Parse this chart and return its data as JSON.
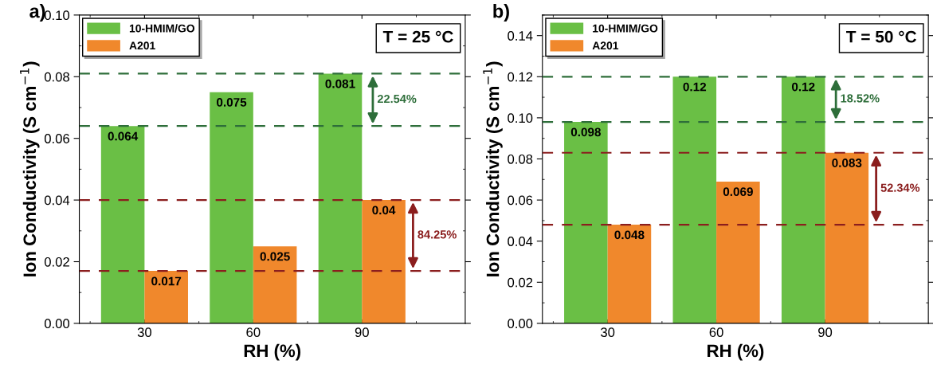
{
  "chart_data": [
    {
      "type": "bar",
      "title": "a)",
      "xlabel": "RH (%)",
      "ylabel": "Ion Conductivity (S cm$^{−1}$)",
      "categories": [
        "30",
        "60",
        "90"
      ],
      "series": [
        {
          "name": "10-HMIM/GO",
          "color": "#6abf45",
          "values": [
            0.064,
            0.075,
            0.081
          ]
        },
        {
          "name": "A201",
          "color": "#f0882c",
          "values": [
            0.017,
            0.025,
            0.04
          ]
        }
      ],
      "ylim": [
        0,
        0.1
      ],
      "yticks": [
        {
          "value": 0,
          "label": "0.00"
        },
        {
          "value": 0.02,
          "label": "0.02"
        },
        {
          "value": 0.04,
          "label": "0.04"
        },
        {
          "value": 0.06,
          "label": "0.06"
        },
        {
          "value": 0.08,
          "label": "0.08"
        },
        {
          "value": 0.1,
          "label": "0.10"
        }
      ],
      "data_labels": true,
      "grid": false,
      "legend": "top left",
      "ref_lines": [
        {
          "axis": "y",
          "value": 0.081,
          "color": "#2e6e3a",
          "line_style": "dashed"
        },
        {
          "axis": "y",
          "value": 0.064,
          "color": "#2e6e3a",
          "line_style": "dashed"
        },
        {
          "axis": "y",
          "value": 0.04,
          "color": "#8b1e1e",
          "line_style": "dashed"
        },
        {
          "axis": "y",
          "value": 0.017,
          "color": "#8b1e1e",
          "line_style": "dashed"
        }
      ],
      "annotations": [
        "22.54%",
        "84.25%",
        "T = 25 °C"
      ]
    },
    {
      "type": "bar",
      "title": "b)",
      "xlabel": "RH (%)",
      "ylabel": "Ion Conductivity (S cm$^{−1}$)",
      "categories": [
        "30",
        "60",
        "90"
      ],
      "series": [
        {
          "name": "10-HMIM/GO",
          "color": "#6abf45",
          "values": [
            0.098,
            0.12,
            0.12
          ]
        },
        {
          "name": "A201",
          "color": "#f0882c",
          "values": [
            0.048,
            0.069,
            0.083
          ]
        }
      ],
      "ylim": [
        0,
        0.15
      ],
      "yticks": [
        {
          "value": 0,
          "label": "0.00"
        },
        {
          "value": 0.02,
          "label": "0.02"
        },
        {
          "value": 0.04,
          "label": "0.04"
        },
        {
          "value": 0.06,
          "label": "0.06"
        },
        {
          "value": 0.08,
          "label": "0.08"
        },
        {
          "value": 0.1,
          "label": "0.10"
        },
        {
          "value": 0.12,
          "label": "0.12"
        },
        {
          "value": 0.14,
          "label": "0.14"
        }
      ],
      "data_labels": true,
      "grid": false,
      "legend": "top left",
      "ref_lines": [
        {
          "axis": "y",
          "value": 0.12,
          "color": "#2e6e3a",
          "line_style": "dashed"
        },
        {
          "axis": "y",
          "value": 0.098,
          "color": "#2e6e3a",
          "line_style": "dashed"
        },
        {
          "axis": "y",
          "value": 0.083,
          "color": "#8b1e1e",
          "line_style": "dashed"
        },
        {
          "axis": "y",
          "value": 0.048,
          "color": "#8b1e1e",
          "line_style": "dashed"
        }
      ],
      "annotations": [
        "18.52%",
        "52.34%",
        "T = 50 °C"
      ]
    }
  ]
}
